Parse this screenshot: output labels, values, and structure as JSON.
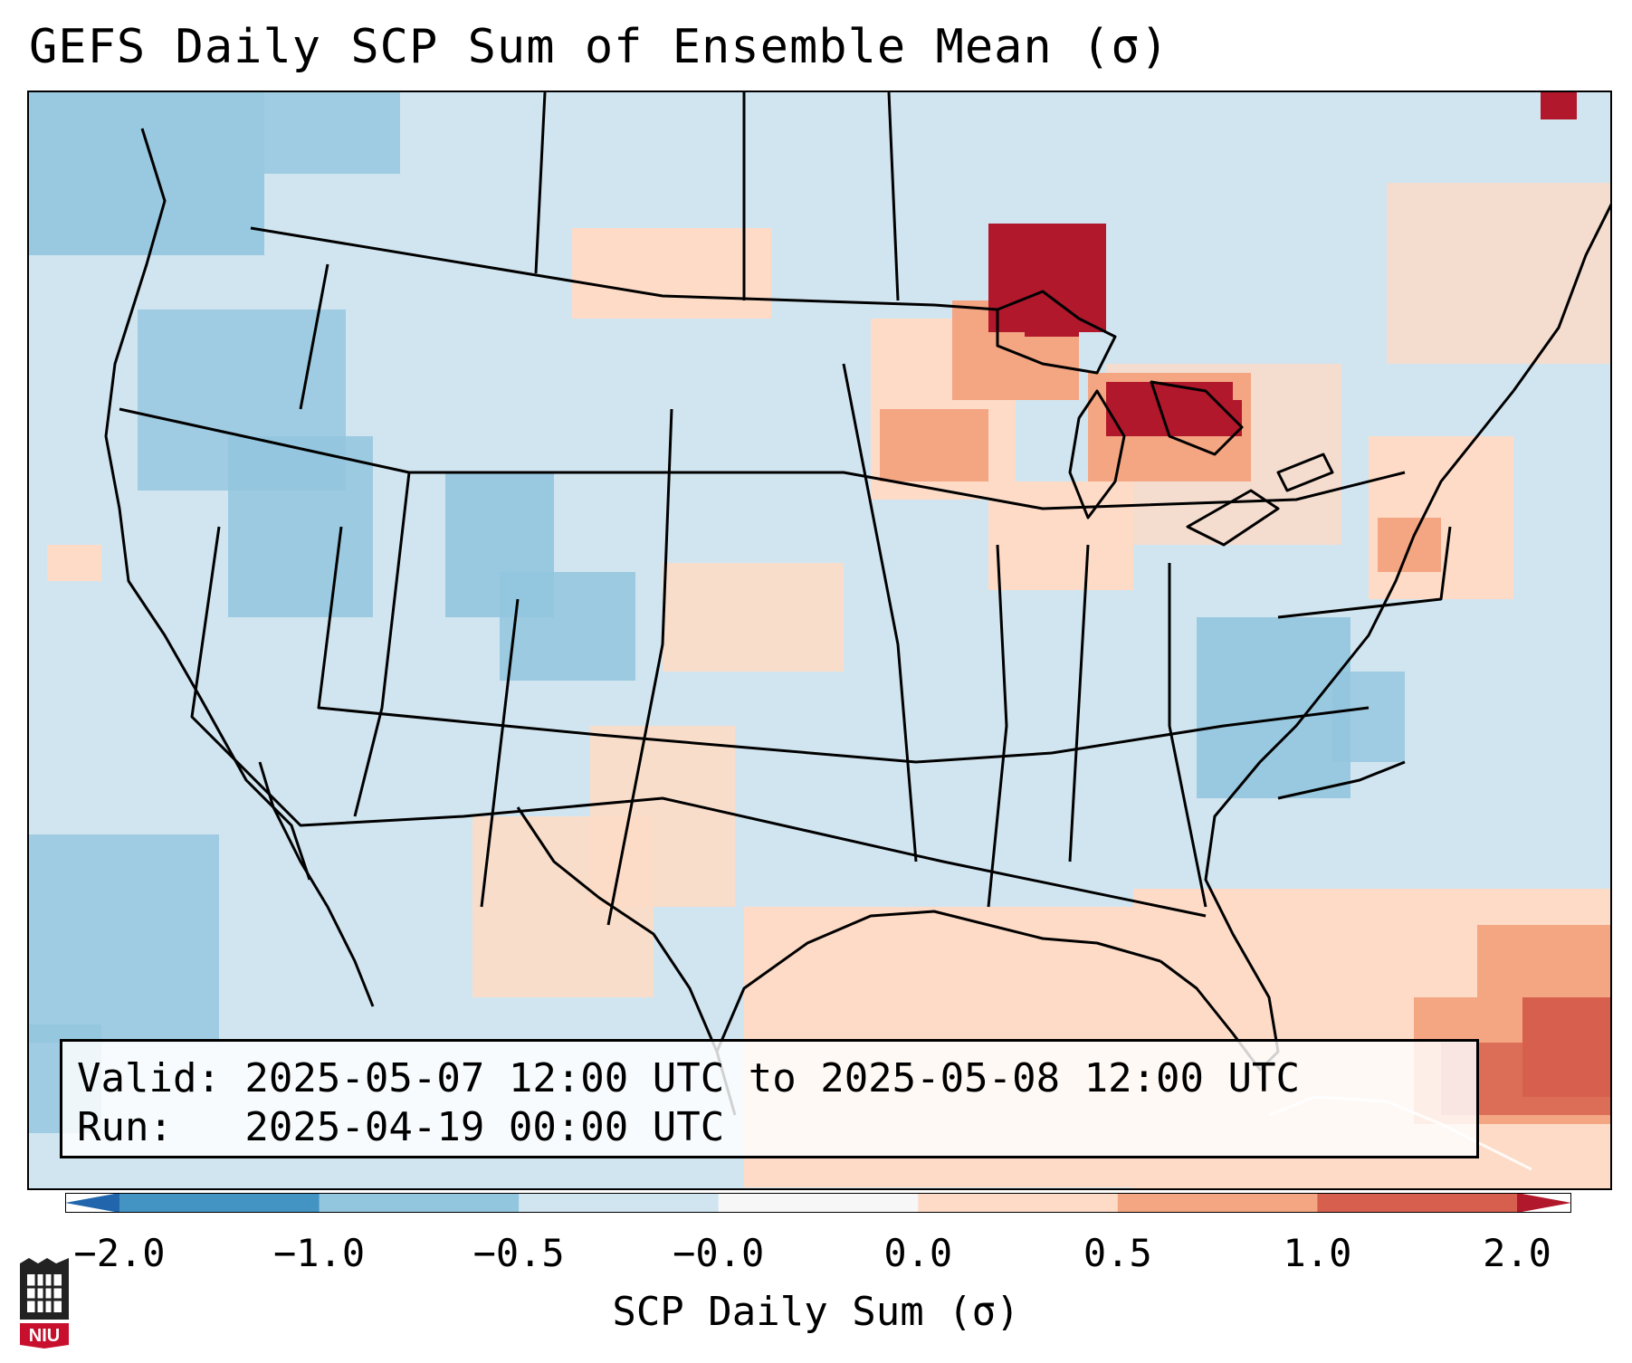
{
  "title": "GEFS Daily SCP Sum of Ensemble Mean (σ)",
  "info": {
    "valid": "Valid: 2025-05-07 12:00 UTC to 2025-05-08 12:00 UTC",
    "run": "Run:   2025-04-19 00:00 UTC"
  },
  "colorbar": {
    "label": "SCP Daily Sum (σ)",
    "ticks": [
      "−2.0",
      "−1.0",
      "−0.5",
      "−0.0",
      "0.0",
      "0.5",
      "1.0",
      "2.0"
    ],
    "colors": [
      "#4393c3",
      "#92c5de",
      "#d1e5f0",
      "#f7f7f7",
      "#fddbc7",
      "#f4a582",
      "#d6604d",
      "#b2182b"
    ],
    "extend": "both"
  },
  "logo": {
    "text": "NIU",
    "icon": "niu-logo-icon"
  }
}
